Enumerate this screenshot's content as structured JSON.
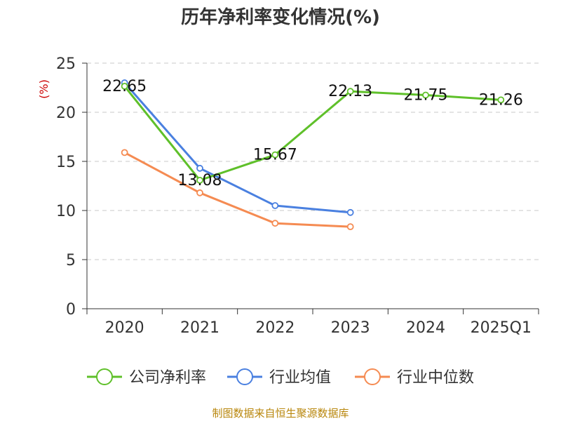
{
  "chart_data": {
    "type": "line",
    "title": "历年净利率变化情况(%)",
    "ylabel": "(%)",
    "ylim": [
      0,
      25
    ],
    "yticks": [
      0,
      5,
      10,
      15,
      20,
      25
    ],
    "categories": [
      "2020",
      "2021",
      "2022",
      "2023",
      "2024",
      "2025Q1"
    ],
    "grid": true,
    "legend_position": "bottom",
    "series": [
      {
        "name": "公司净利率",
        "color": "#5fc02a",
        "values": [
          22.65,
          13.08,
          15.67,
          22.13,
          21.75,
          21.26
        ],
        "labels": [
          "22.65",
          "13.08",
          "15.67",
          "22.13",
          "21.75",
          "21.26"
        ]
      },
      {
        "name": "行业均值",
        "color": "#4a80e0",
        "values": [
          23.0,
          14.3,
          10.5,
          9.8,
          null,
          null
        ]
      },
      {
        "name": "行业中位数",
        "color": "#f58b52",
        "values": [
          15.9,
          11.8,
          8.7,
          8.35,
          null,
          null
        ]
      }
    ],
    "source": "制图数据来自恒生聚源数据库"
  }
}
